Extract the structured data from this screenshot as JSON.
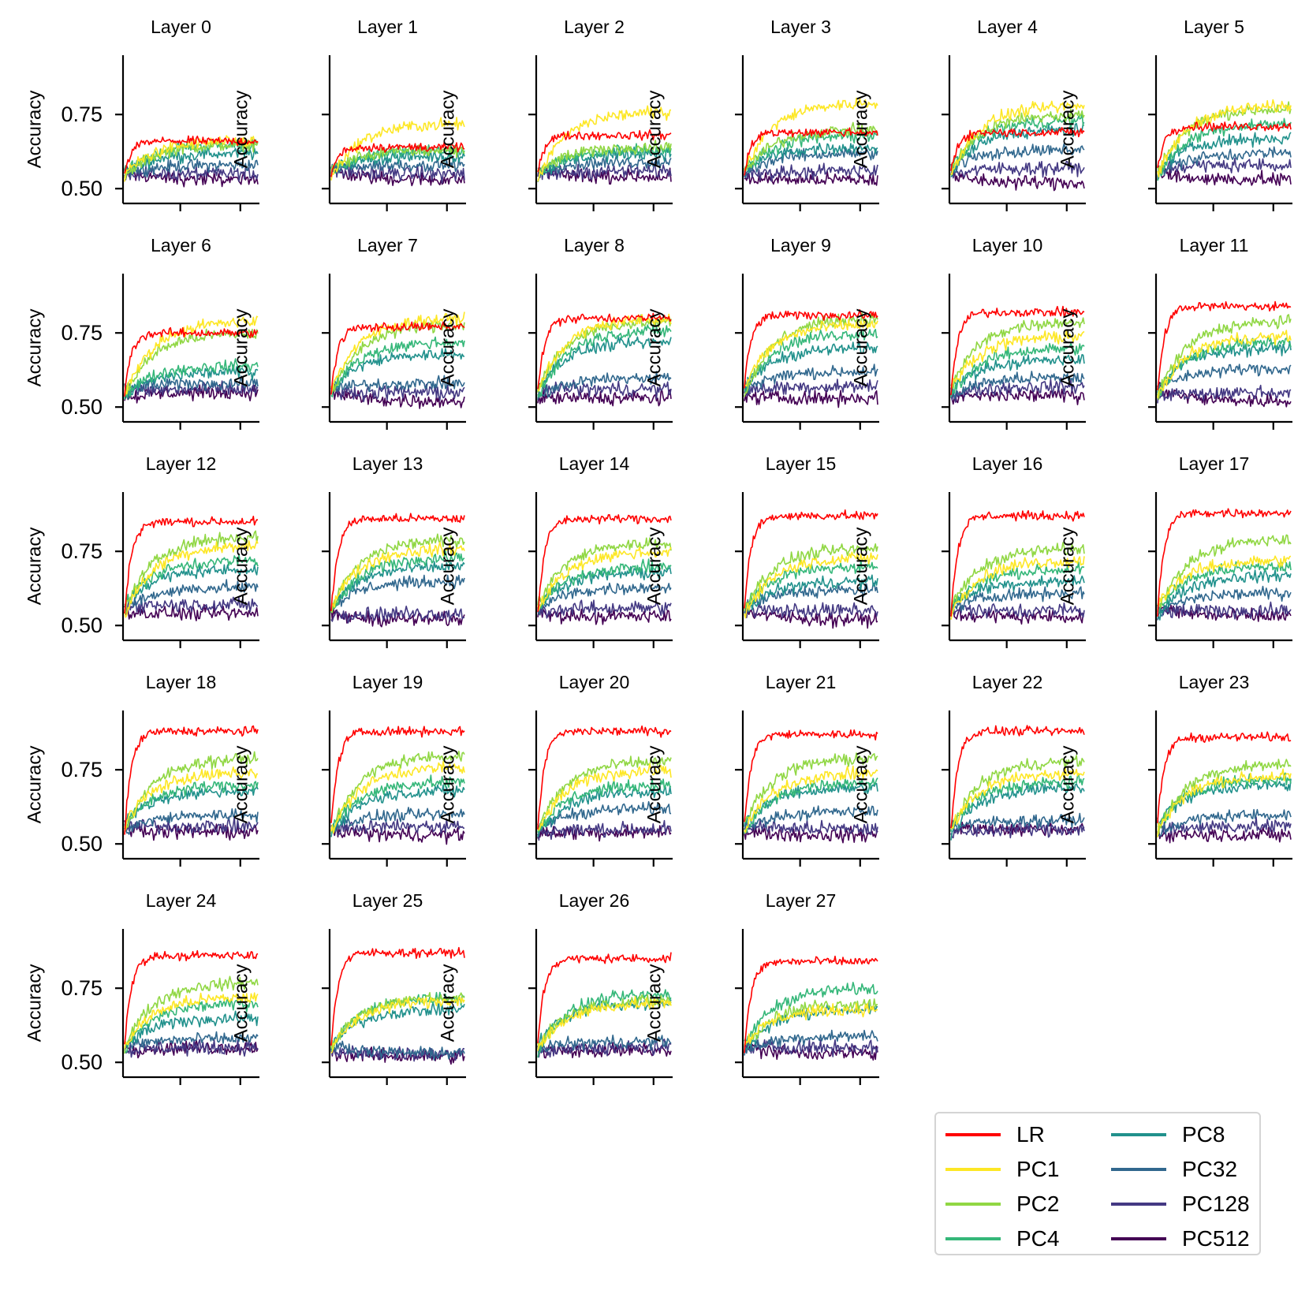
{
  "chart_data": {
    "type": "line",
    "panel_titles": [
      "Layer 0",
      "Layer 1",
      "Layer 2",
      "Layer 3",
      "Layer 4",
      "Layer 5",
      "Layer 6",
      "Layer 7",
      "Layer 8",
      "Layer 9",
      "Layer 10",
      "Layer 11",
      "Layer 12",
      "Layer 13",
      "Layer 14",
      "Layer 15",
      "Layer 16",
      "Layer 17",
      "Layer 18",
      "Layer 19",
      "Layer 20",
      "Layer 21",
      "Layer 22",
      "Layer 23",
      "Layer 24",
      "Layer 25",
      "Layer 26",
      "Layer 27"
    ],
    "ylabel": "Accuracy",
    "ylim": [
      0.45,
      0.95
    ],
    "yticks": [
      0.5,
      0.75
    ],
    "ytick_labels": [
      "0.50",
      "0.75"
    ],
    "xticks_labeled": false,
    "grid": false,
    "legend_position": "bottom-right",
    "legend_columns": 2,
    "series": [
      {
        "name": "LR",
        "color": "#ff0000",
        "levels": [
          0.66,
          0.64,
          0.68,
          0.69,
          0.69,
          0.71,
          0.75,
          0.77,
          0.8,
          0.81,
          0.82,
          0.84,
          0.85,
          0.86,
          0.86,
          0.87,
          0.87,
          0.88,
          0.88,
          0.88,
          0.88,
          0.87,
          0.88,
          0.86,
          0.86,
          0.87,
          0.85,
          0.84
        ]
      },
      {
        "name": "PC1",
        "color": "#fde725",
        "levels": [
          0.66,
          0.72,
          0.76,
          0.79,
          0.78,
          0.78,
          0.79,
          0.8,
          0.8,
          0.78,
          0.74,
          0.74,
          0.77,
          0.76,
          0.75,
          0.73,
          0.72,
          0.72,
          0.74,
          0.76,
          0.75,
          0.74,
          0.74,
          0.73,
          0.72,
          0.71,
          0.7,
          0.68
        ]
      },
      {
        "name": "PC2",
        "color": "#90d743",
        "levels": [
          0.65,
          0.63,
          0.64,
          0.7,
          0.75,
          0.77,
          0.75,
          0.78,
          0.79,
          0.8,
          0.79,
          0.79,
          0.8,
          0.79,
          0.78,
          0.76,
          0.76,
          0.79,
          0.79,
          0.8,
          0.78,
          0.79,
          0.78,
          0.77,
          0.77,
          0.72,
          0.71,
          0.7
        ]
      },
      {
        "name": "PC4",
        "color": "#35b779",
        "levels": [
          0.65,
          0.63,
          0.63,
          0.68,
          0.73,
          0.72,
          0.64,
          0.72,
          0.76,
          0.75,
          0.7,
          0.72,
          0.72,
          0.73,
          0.7,
          0.7,
          0.69,
          0.7,
          0.7,
          0.71,
          0.7,
          0.71,
          0.71,
          0.72,
          0.7,
          0.72,
          0.73,
          0.75
        ]
      },
      {
        "name": "PC8",
        "color": "#21918c",
        "levels": [
          0.62,
          0.61,
          0.62,
          0.64,
          0.7,
          0.67,
          0.62,
          0.68,
          0.72,
          0.7,
          0.66,
          0.7,
          0.69,
          0.7,
          0.68,
          0.65,
          0.65,
          0.67,
          0.68,
          0.68,
          0.68,
          0.69,
          0.69,
          0.7,
          0.65,
          0.68,
          0.7,
          0.68
        ]
      },
      {
        "name": "PC32",
        "color": "#31688e",
        "levels": [
          0.58,
          0.58,
          0.59,
          0.62,
          0.63,
          0.62,
          0.58,
          0.58,
          0.6,
          0.62,
          0.6,
          0.63,
          0.63,
          0.65,
          0.63,
          0.62,
          0.61,
          0.61,
          0.6,
          0.6,
          0.62,
          0.61,
          0.58,
          0.6,
          0.58,
          0.53,
          0.57,
          0.59
        ]
      },
      {
        "name": "PC128",
        "color": "#443983",
        "levels": [
          0.55,
          0.55,
          0.56,
          0.56,
          0.57,
          0.58,
          0.56,
          0.55,
          0.56,
          0.57,
          0.57,
          0.55,
          0.57,
          0.54,
          0.56,
          0.55,
          0.55,
          0.55,
          0.56,
          0.56,
          0.55,
          0.55,
          0.55,
          0.56,
          0.55,
          0.53,
          0.55,
          0.55
        ]
      },
      {
        "name": "PC512",
        "color": "#440154",
        "levels": [
          0.53,
          0.53,
          0.54,
          0.53,
          0.52,
          0.53,
          0.55,
          0.52,
          0.53,
          0.53,
          0.54,
          0.52,
          0.54,
          0.52,
          0.53,
          0.52,
          0.53,
          0.53,
          0.54,
          0.53,
          0.54,
          0.53,
          0.55,
          0.53,
          0.55,
          0.52,
          0.54,
          0.53
        ]
      }
    ]
  }
}
